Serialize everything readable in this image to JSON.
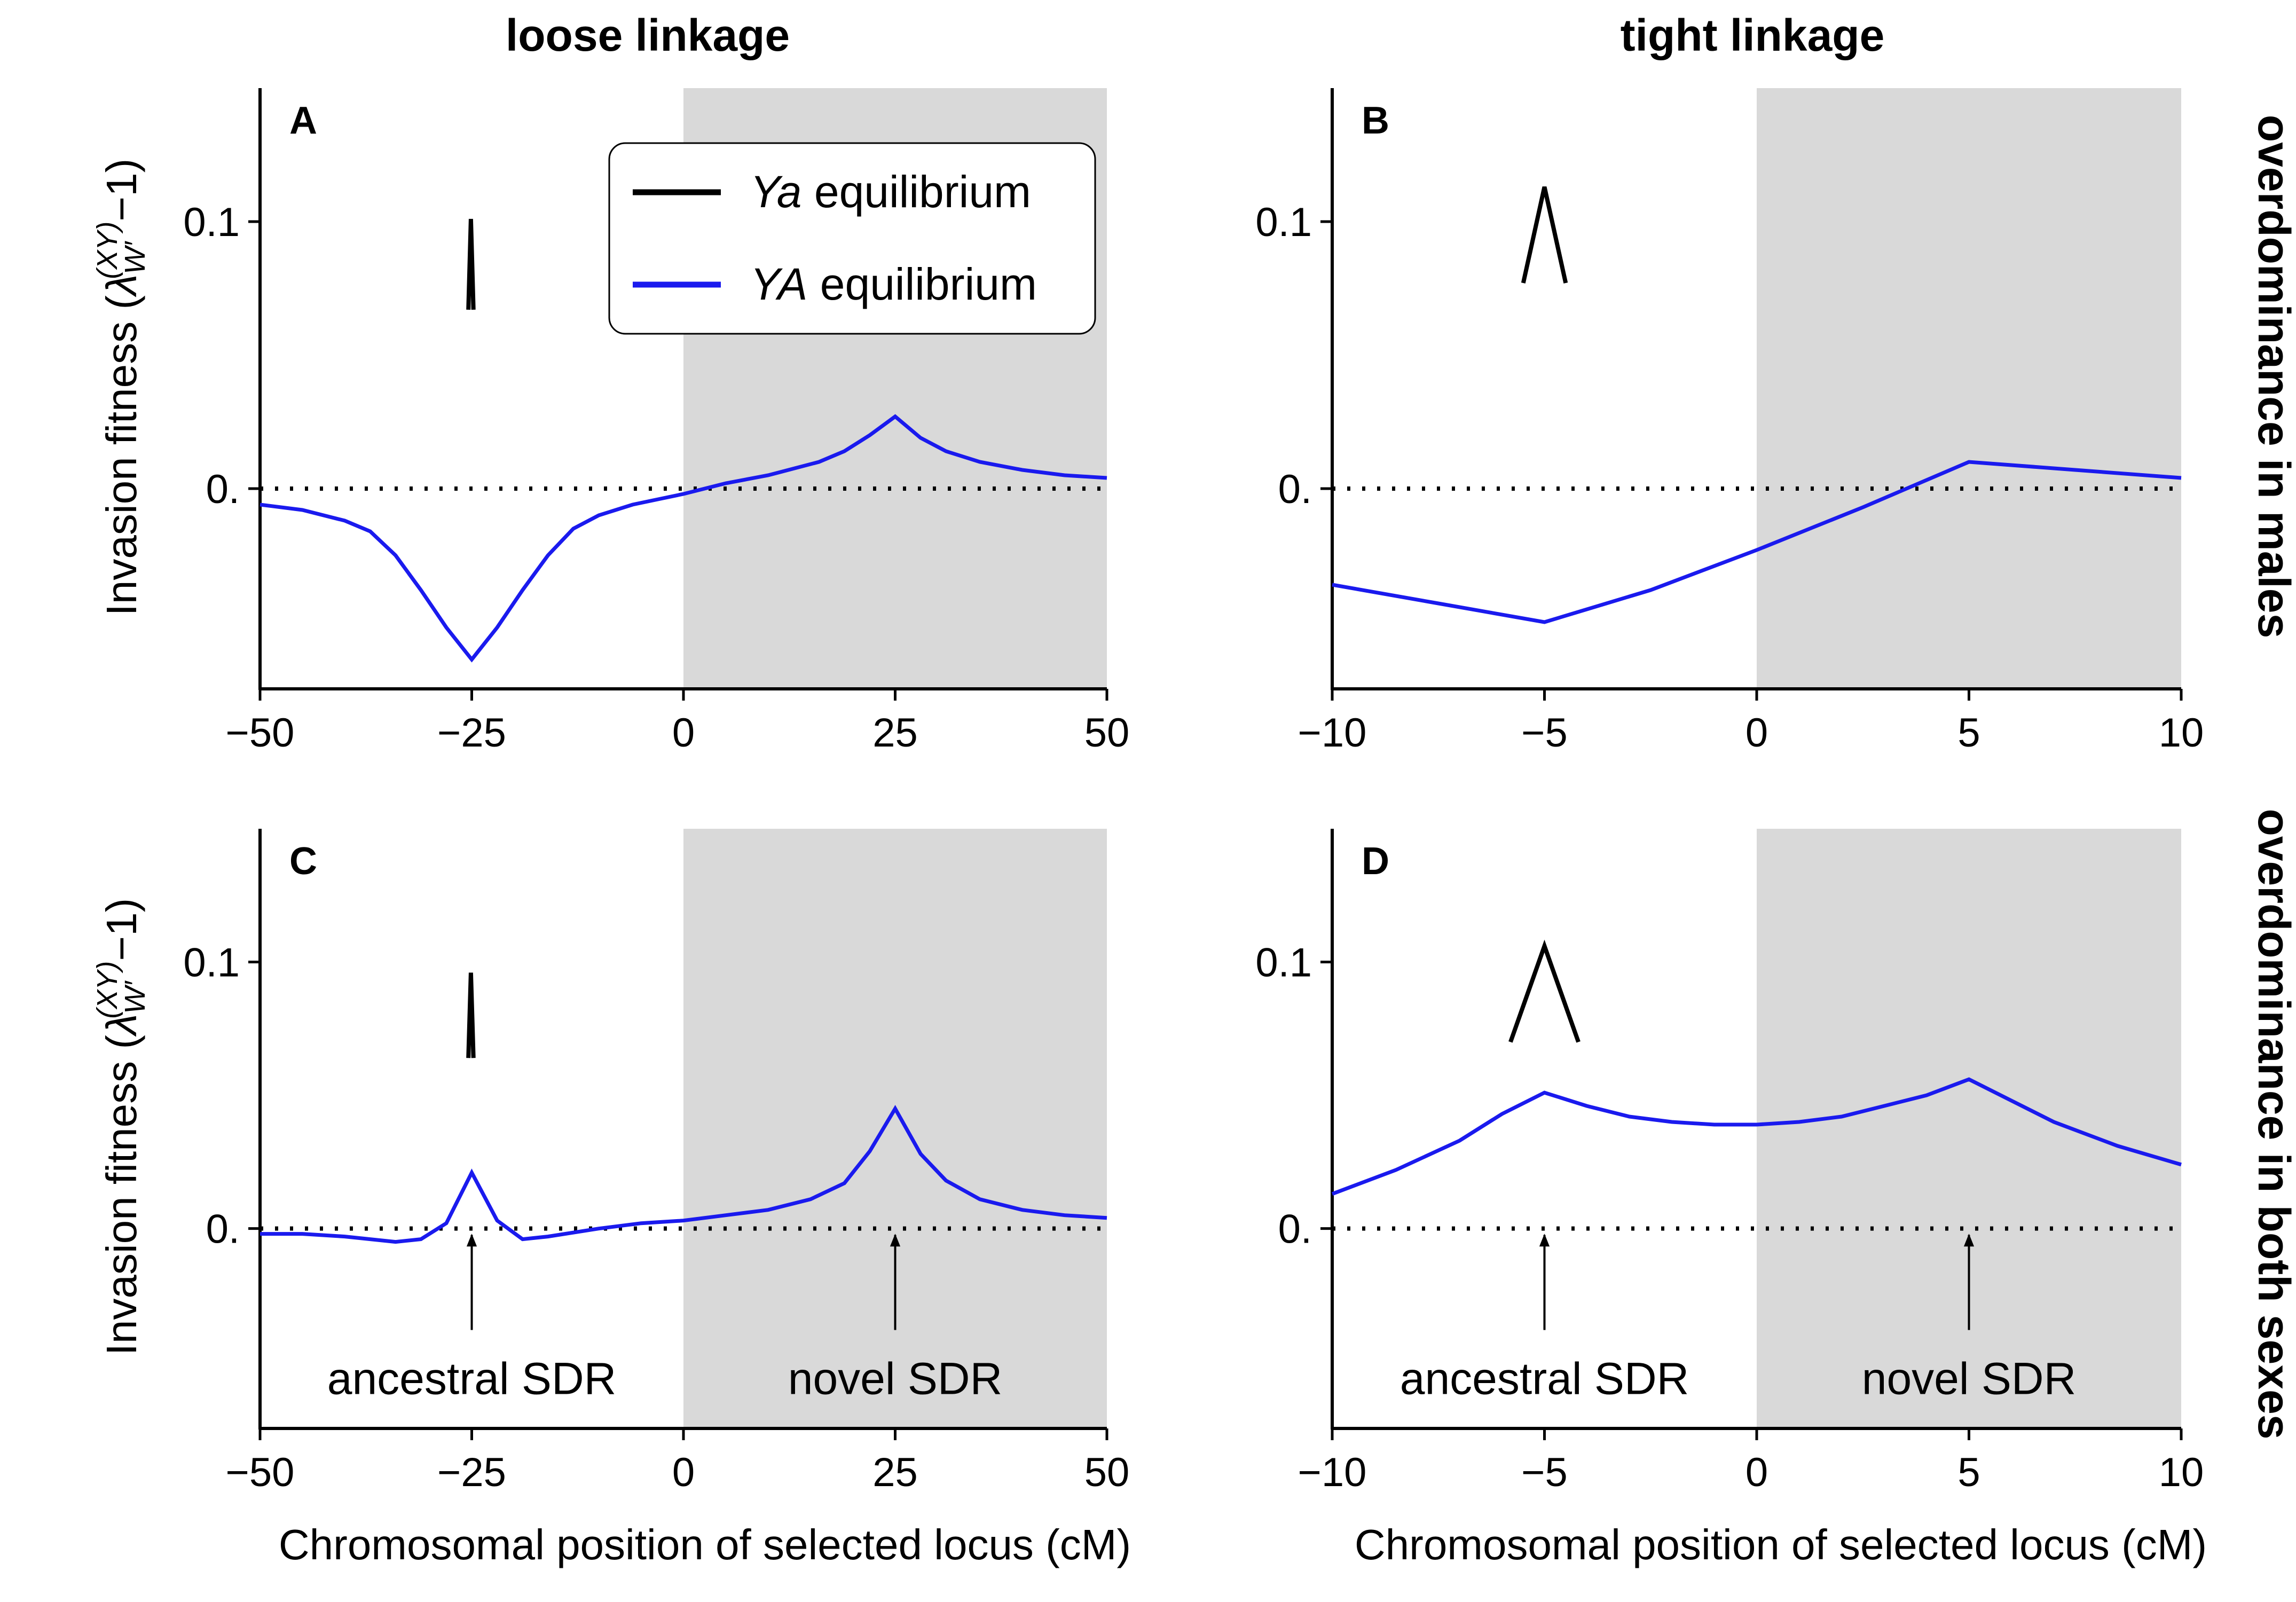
{
  "column_titles": [
    "loose linkage",
    "tight linkage"
  ],
  "row_titles": [
    "overdominance in males",
    "overdominance in both sexes"
  ],
  "legend": {
    "entries": [
      {
        "italic": "Ya",
        "rest": " equilibrium",
        "color": "#000000"
      },
      {
        "italic": "YA",
        "rest": " equilibrium",
        "color": "#1a1aee"
      }
    ]
  },
  "colors": {
    "ya": "#000000",
    "YA": "#1a1aee",
    "shade": "#d9d9d9"
  },
  "y_label": {
    "main": "Invasion fitness (",
    "lambda": "λ",
    "sub": "W′",
    "sup": "(XY)",
    "tail": "−1)"
  },
  "x_label": "Chromosomal position of selected locus (cM)",
  "annotations": {
    "ancestral": "ancestral SDR",
    "novel": "novel SDR"
  },
  "chart_data": [
    {
      "panel": "A",
      "type": "line",
      "xlim": [
        -50,
        50
      ],
      "ylim": [
        -0.075,
        0.15
      ],
      "xticks": [
        -50,
        -25,
        0,
        25,
        50
      ],
      "xtick_labels": [
        "−50",
        "−25",
        "0",
        "25",
        "50"
      ],
      "yticks": [
        0.0,
        0.1
      ],
      "ytick_labels": [
        "0.",
        "0.1"
      ],
      "shaded_region": [
        0,
        50
      ],
      "series": [
        {
          "key": "YA",
          "x": [
            -50,
            -45,
            -40,
            -37,
            -34,
            -31,
            -28,
            -25,
            -22,
            -19,
            -16,
            -13,
            -10,
            -6,
            -3,
            0,
            5,
            10,
            16,
            19,
            22,
            25,
            28,
            31,
            35,
            40,
            45,
            50
          ],
          "y": [
            -0.006,
            -0.008,
            -0.012,
            -0.016,
            -0.025,
            -0.038,
            -0.052,
            -0.064,
            -0.052,
            -0.038,
            -0.025,
            -0.015,
            -0.01,
            -0.006,
            -0.004,
            -0.002,
            0.002,
            0.005,
            0.01,
            0.014,
            0.02,
            0.027,
            0.019,
            0.014,
            0.01,
            0.007,
            0.005,
            0.004
          ]
        },
        {
          "key": "Ya",
          "x": [
            -25.4,
            -25.1,
            -24.8
          ],
          "y": [
            0.067,
            0.101,
            0.067
          ]
        }
      ]
    },
    {
      "panel": "B",
      "type": "line",
      "xlim": [
        -10,
        10
      ],
      "ylim": [
        -0.075,
        0.15
      ],
      "xticks": [
        -10,
        -5,
        0,
        5,
        10
      ],
      "xtick_labels": [
        "−10",
        "−5",
        "0",
        "5",
        "10"
      ],
      "yticks": [
        0.0,
        0.1
      ],
      "ytick_labels": [
        "0.",
        "0.1"
      ],
      "shaded_region": [
        0,
        10
      ],
      "series": [
        {
          "key": "YA",
          "x": [
            -10,
            -7.5,
            -5,
            -2.5,
            0,
            2.5,
            5,
            7.5,
            10
          ],
          "y": [
            -0.036,
            -0.043,
            -0.05,
            -0.038,
            -0.023,
            -0.007,
            0.01,
            0.007,
            0.004
          ]
        },
        {
          "key": "Ya",
          "x": [
            -5.5,
            -5,
            -4.5
          ],
          "y": [
            0.077,
            0.113,
            0.077
          ]
        }
      ]
    },
    {
      "panel": "C",
      "type": "line",
      "xlim": [
        -50,
        50
      ],
      "ylim": [
        -0.075,
        0.15
      ],
      "xticks": [
        -50,
        -25,
        0,
        25,
        50
      ],
      "xtick_labels": [
        "−50",
        "−25",
        "0",
        "25",
        "50"
      ],
      "yticks": [
        0.0,
        0.1
      ],
      "ytick_labels": [
        "0.",
        "0.1"
      ],
      "shaded_region": [
        0,
        50
      ],
      "series": [
        {
          "key": "YA",
          "x": [
            -50,
            -45,
            -40,
            -34,
            -31,
            -28,
            -25,
            -22,
            -19,
            -16,
            -10,
            -5,
            0,
            5,
            10,
            15,
            19,
            22,
            25,
            28,
            31,
            35,
            40,
            45,
            50
          ],
          "y": [
            -0.002,
            -0.002,
            -0.003,
            -0.005,
            -0.004,
            0.002,
            0.021,
            0.003,
            -0.004,
            -0.003,
            0.0,
            0.002,
            0.003,
            0.005,
            0.007,
            0.011,
            0.017,
            0.029,
            0.045,
            0.028,
            0.018,
            0.011,
            0.007,
            0.005,
            0.004
          ]
        },
        {
          "key": "Ya",
          "x": [
            -25.4,
            -25.1,
            -24.8
          ],
          "y": [
            0.064,
            0.096,
            0.064
          ]
        }
      ],
      "annotations": [
        {
          "label": "ancestral SDR",
          "x": -25
        },
        {
          "label": "novel SDR",
          "x": 25
        }
      ]
    },
    {
      "panel": "D",
      "type": "line",
      "xlim": [
        -10,
        10
      ],
      "ylim": [
        -0.075,
        0.15
      ],
      "xticks": [
        -10,
        -5,
        0,
        5,
        10
      ],
      "xtick_labels": [
        "−10",
        "−5",
        "0",
        "5",
        "10"
      ],
      "yticks": [
        0.0,
        0.1
      ],
      "ytick_labels": [
        "0.",
        "0.1"
      ],
      "shaded_region": [
        0,
        10
      ],
      "series": [
        {
          "key": "YA",
          "x": [
            -10,
            -8.5,
            -7,
            -6,
            -5,
            -4,
            -3,
            -2,
            -1,
            0,
            1,
            2,
            3,
            4,
            5,
            6,
            7,
            8.5,
            10
          ],
          "y": [
            0.013,
            0.022,
            0.033,
            0.043,
            0.051,
            0.046,
            0.042,
            0.04,
            0.039,
            0.039,
            0.04,
            0.042,
            0.046,
            0.05,
            0.056,
            0.048,
            0.04,
            0.031,
            0.024
          ]
        },
        {
          "key": "Ya",
          "x": [
            -5.8,
            -5,
            -4.2
          ],
          "y": [
            0.07,
            0.106,
            0.07
          ]
        }
      ],
      "annotations": [
        {
          "label": "ancestral SDR",
          "x": -5
        },
        {
          "label": "novel SDR",
          "x": 5
        }
      ]
    }
  ]
}
